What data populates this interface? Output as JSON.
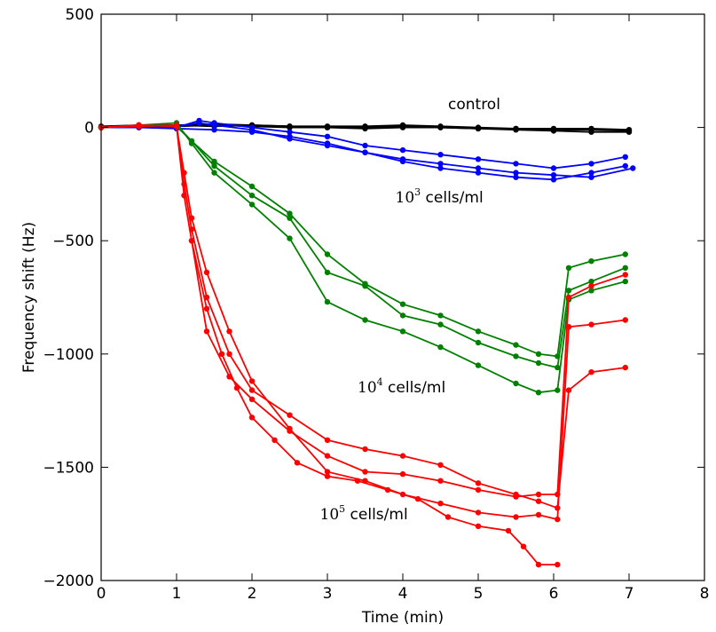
{
  "chart_data": {
    "type": "line",
    "title": "",
    "xlabel": "Time (min)",
    "ylabel": "Frequency shift (Hz)",
    "xlim": [
      0,
      8
    ],
    "ylim": [
      -2000,
      500
    ],
    "xticks": [
      0,
      1,
      2,
      3,
      4,
      5,
      6,
      7,
      8
    ],
    "yticks": [
      -2000,
      -1500,
      -1000,
      -500,
      0,
      500
    ],
    "grid": false,
    "legend": "none",
    "annotations": [
      {
        "text": "control",
        "x": 4.6,
        "y": 80
      },
      {
        "base": "10",
        "sup": "3",
        "text": " cells/ml",
        "x": 3.9,
        "y": -330
      },
      {
        "base": "10",
        "sup": "4",
        "text": " cells/ml",
        "x": 3.4,
        "y": -1170
      },
      {
        "base": "10",
        "sup": "5",
        "text": " cells/ml",
        "x": 2.9,
        "y": -1730
      }
    ],
    "series": [
      {
        "group": "control",
        "color": "#000000",
        "x": [
          0,
          0.5,
          1,
          1.5,
          2,
          2.5,
          3,
          3.5,
          4,
          4.5,
          5,
          5.5,
          6,
          6.5,
          7
        ],
        "y": [
          0,
          5,
          10,
          15,
          10,
          5,
          0,
          -5,
          0,
          0,
          -5,
          -5,
          -10,
          -10,
          -15
        ]
      },
      {
        "group": "control",
        "color": "#000000",
        "x": [
          0,
          0.5,
          1,
          1.5,
          2,
          2.5,
          3,
          3.5,
          4,
          4.5,
          5,
          5.5,
          6,
          6.5,
          7
        ],
        "y": [
          0,
          0,
          5,
          10,
          5,
          0,
          0,
          0,
          5,
          0,
          -5,
          -10,
          -15,
          -20,
          -20
        ]
      },
      {
        "group": "control",
        "color": "#000000",
        "x": [
          0,
          0.5,
          1,
          1.5,
          2,
          2.5,
          3,
          3.5,
          4,
          4.5,
          5,
          5.5,
          6,
          6.5,
          7
        ],
        "y": [
          5,
          10,
          10,
          5,
          10,
          5,
          5,
          5,
          10,
          5,
          0,
          -5,
          -5,
          -5,
          -10
        ]
      },
      {
        "group": "1e3",
        "color": "#0000ff",
        "x": [
          0,
          0.5,
          1,
          1.3,
          1.5,
          2,
          2.5,
          3,
          3.5,
          4,
          4.5,
          5,
          5.5,
          6,
          6.5,
          6.95
        ],
        "y": [
          0,
          5,
          0,
          30,
          20,
          0,
          -20,
          -40,
          -80,
          -100,
          -120,
          -140,
          -160,
          -180,
          -160,
          -130
        ]
      },
      {
        "group": "1e3",
        "color": "#0000ff",
        "x": [
          0,
          0.5,
          1,
          1.3,
          1.5,
          2,
          2.5,
          3,
          3.5,
          4,
          4.5,
          5,
          5.5,
          6,
          6.5,
          7.05
        ],
        "y": [
          0,
          10,
          5,
          20,
          10,
          -10,
          -50,
          -80,
          -110,
          -140,
          -160,
          -180,
          -200,
          -210,
          -220,
          -180
        ]
      },
      {
        "group": "1e3",
        "color": "#0000ff",
        "x": [
          0,
          0.5,
          1,
          1.5,
          2,
          2.5,
          3,
          3.5,
          4,
          4.5,
          5,
          5.5,
          6,
          6.5,
          6.95
        ],
        "y": [
          0,
          0,
          -5,
          -10,
          -20,
          -40,
          -70,
          -110,
          -150,
          -180,
          -200,
          -220,
          -230,
          -200,
          -170
        ]
      },
      {
        "group": "1e4",
        "color": "#008000",
        "x": [
          0,
          0.5,
          1,
          1.2,
          1.5,
          2,
          2.5,
          3,
          3.5,
          4,
          4.5,
          5,
          5.5,
          5.8,
          6.05,
          6.2,
          6.5,
          6.95
        ],
        "y": [
          0,
          10,
          5,
          -60,
          -150,
          -260,
          -380,
          -560,
          -690,
          -780,
          -830,
          -900,
          -960,
          -1000,
          -1010,
          -620,
          -590,
          -560
        ]
      },
      {
        "group": "1e4",
        "color": "#008000",
        "x": [
          0,
          0.5,
          1,
          1.2,
          1.5,
          2,
          2.5,
          3,
          3.5,
          4,
          4.5,
          5,
          5.5,
          5.8,
          6.05,
          6.2,
          6.5,
          6.95
        ],
        "y": [
          0,
          5,
          10,
          -60,
          -170,
          -300,
          -400,
          -640,
          -700,
          -830,
          -870,
          -950,
          -1010,
          -1040,
          -1060,
          -720,
          -680,
          -620
        ]
      },
      {
        "group": "1e4",
        "color": "#008000",
        "x": [
          0,
          0.5,
          1,
          1.2,
          1.5,
          2,
          2.5,
          3,
          3.5,
          4,
          4.5,
          5,
          5.5,
          5.8,
          6.05,
          6.2,
          6.5,
          6.95
        ],
        "y": [
          0,
          10,
          20,
          -70,
          -200,
          -340,
          -490,
          -770,
          -850,
          -900,
          -970,
          -1050,
          -1130,
          -1170,
          -1160,
          -760,
          -720,
          -680
        ]
      },
      {
        "group": "1e5",
        "color": "#ff0000",
        "x": [
          0,
          0.5,
          1,
          1.1,
          1.2,
          1.4,
          1.7,
          2,
          2.5,
          3,
          3.5,
          4,
          4.5,
          5,
          5.5,
          5.8,
          6.05,
          6.2,
          6.5,
          6.95
        ],
        "y": [
          0,
          10,
          5,
          -300,
          -500,
          -900,
          -1100,
          -1200,
          -1340,
          -1450,
          -1520,
          -1530,
          -1560,
          -1600,
          -1630,
          -1620,
          -1620,
          -750,
          -700,
          -650
        ]
      },
      {
        "group": "1e5",
        "color": "#ff0000",
        "x": [
          0,
          0.5,
          1,
          1.1,
          1.2,
          1.4,
          1.7,
          2,
          2.5,
          3,
          3.5,
          4,
          4.5,
          5,
          5.5,
          5.8,
          6.05,
          6.2,
          6.5,
          6.95
        ],
        "y": [
          0,
          5,
          10,
          -250,
          -450,
          -750,
          -1000,
          -1160,
          -1270,
          -1380,
          -1420,
          -1450,
          -1490,
          -1570,
          -1620,
          -1650,
          -1680,
          -1160,
          -1080,
          -1060
        ]
      },
      {
        "group": "1e5",
        "color": "#ff0000",
        "x": [
          0,
          0.5,
          1,
          1.1,
          1.2,
          1.4,
          1.7,
          2,
          2.5,
          3,
          3.5,
          4,
          4.5,
          5,
          5.5,
          5.8,
          6.05,
          6.2,
          6.5,
          6.95
        ],
        "y": [
          0,
          10,
          5,
          -200,
          -400,
          -640,
          -900,
          -1120,
          -1330,
          -1520,
          -1560,
          -1620,
          -1660,
          -1700,
          -1720,
          -1710,
          -1730,
          -880,
          -870,
          -850
        ]
      },
      {
        "group": "1e5",
        "color": "#ff0000",
        "x": [
          1.2,
          1.4,
          1.6,
          1.8,
          2,
          2.3,
          2.6,
          3,
          3.4,
          3.8,
          4.2,
          4.6,
          5,
          5.4,
          5.6,
          5.8,
          6.05
        ],
        "y": [
          -500,
          -800,
          -1000,
          -1150,
          -1280,
          -1380,
          -1480,
          -1540,
          -1560,
          -1600,
          -1640,
          -1720,
          -1760,
          -1780,
          -1850,
          -1930,
          -1930
        ]
      }
    ]
  }
}
